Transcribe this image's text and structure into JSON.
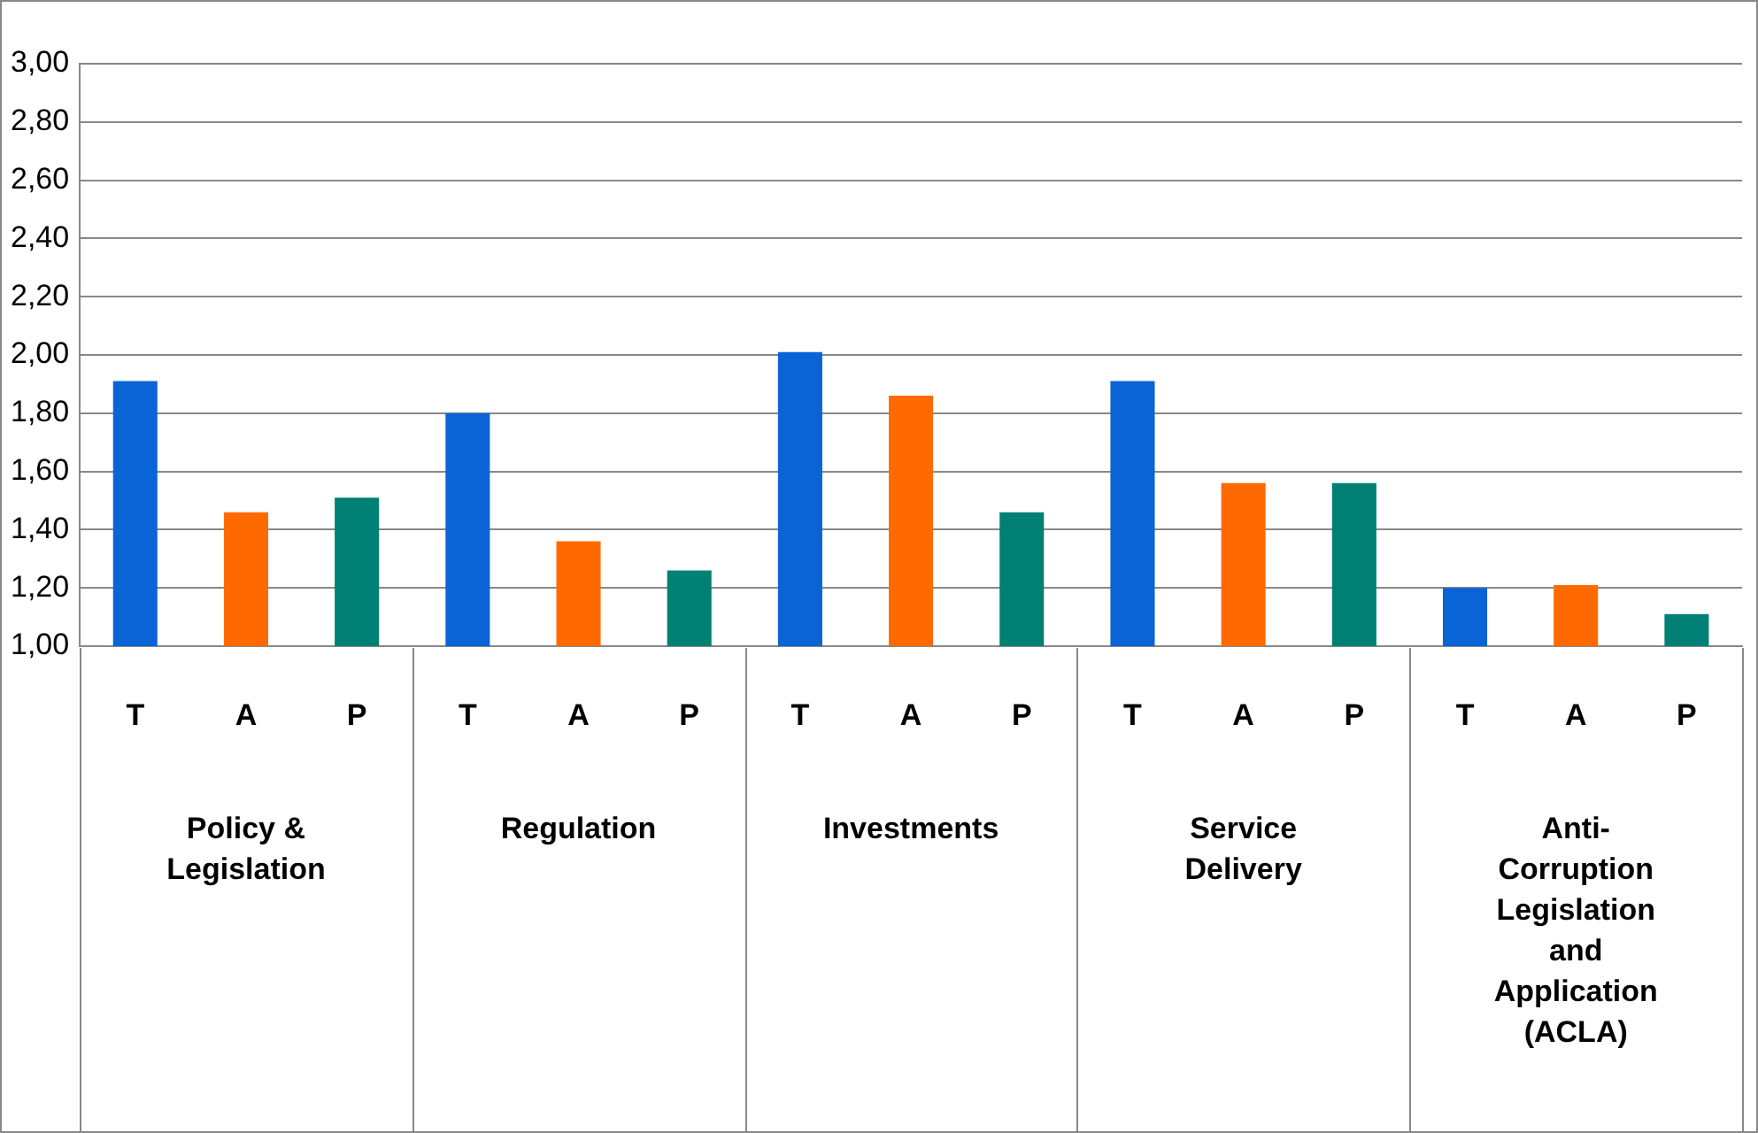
{
  "chart_data": {
    "type": "bar",
    "categories": [
      "Policy & Legislation",
      "Regulation",
      "Investments",
      "Service Delivery",
      "Anti-Corruption Legislation and Application (ACLA)"
    ],
    "series": [
      {
        "name": "T",
        "color": "#0a64d6",
        "values": [
          1.91,
          1.8,
          2.01,
          1.91,
          1.2
        ]
      },
      {
        "name": "A",
        "color": "#ff6a00",
        "values": [
          1.46,
          1.36,
          1.86,
          1.56,
          1.21
        ]
      },
      {
        "name": "P",
        "color": "#008075",
        "values": [
          1.51,
          1.26,
          1.46,
          1.56,
          1.11
        ]
      }
    ],
    "ylim": [
      1,
      3
    ],
    "yticks": [
      {
        "value": 1,
        "label": "1,00"
      },
      {
        "value": 1.2,
        "label": "1,20"
      },
      {
        "value": 1.4,
        "label": "1,40"
      },
      {
        "value": 1.6,
        "label": "1,60"
      },
      {
        "value": 1.8,
        "label": "1,80"
      },
      {
        "value": 2,
        "label": "2,00"
      },
      {
        "value": 2.2,
        "label": "2,20"
      },
      {
        "value": 2.4,
        "label": "2,40"
      },
      {
        "value": 2.6,
        "label": "2,60"
      },
      {
        "value": 2.8,
        "label": "2,80"
      },
      {
        "value": 3,
        "label": "3,00"
      }
    ],
    "grid": "y"
  }
}
